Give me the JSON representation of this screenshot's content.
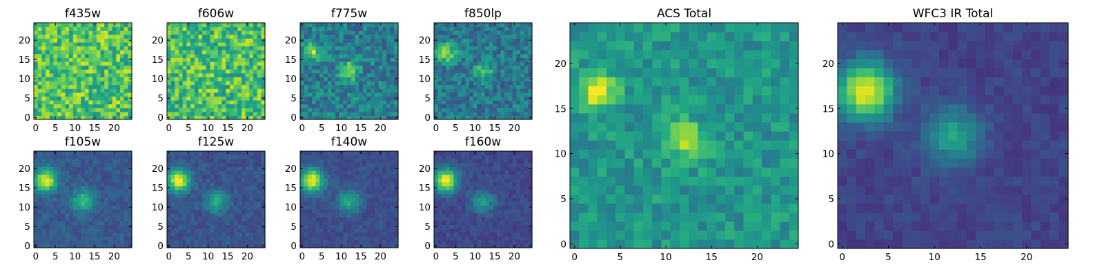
{
  "figure": {
    "description": "Grid of 8 per-filter image cutouts plus ACS and WFC3 IR stacked totals",
    "colormap": "viridis",
    "grid_size": 25
  },
  "chart_data": [
    {
      "type": "heatmap",
      "title": "f435w",
      "xticks": [
        "0",
        "5",
        "10",
        "15",
        "20"
      ],
      "yticks": [
        "0",
        "5",
        "10",
        "15",
        "20"
      ],
      "xlim": [
        0,
        25
      ],
      "ylim": [
        0,
        25
      ],
      "colormap": "viridis",
      "features": {
        "background": 0.72,
        "noise": 0.22,
        "sources": []
      }
    },
    {
      "type": "heatmap",
      "title": "f606w",
      "xticks": [
        "0",
        "5",
        "10",
        "15",
        "20"
      ],
      "yticks": [
        "0",
        "5",
        "10",
        "15",
        "20"
      ],
      "xlim": [
        0,
        25
      ],
      "ylim": [
        0,
        25
      ],
      "colormap": "viridis",
      "features": {
        "background": 0.7,
        "noise": 0.22,
        "sources": []
      }
    },
    {
      "type": "heatmap",
      "title": "f775w",
      "xticks": [
        "0",
        "5",
        "10",
        "15",
        "20"
      ],
      "yticks": [
        "0",
        "5",
        "10",
        "15",
        "20"
      ],
      "xlim": [
        0,
        25
      ],
      "ylim": [
        0,
        25
      ],
      "colormap": "viridis",
      "features": {
        "background": 0.42,
        "noise": 0.16,
        "sources": [
          {
            "x": 2.5,
            "y": 17,
            "amp": 0.45,
            "sigma": 1.6
          },
          {
            "x": 12,
            "y": 12,
            "amp": 0.45,
            "sigma": 1.6
          }
        ]
      }
    },
    {
      "type": "heatmap",
      "title": "f850lp",
      "xticks": [
        "0",
        "5",
        "10",
        "15",
        "20"
      ],
      "yticks": [
        "0",
        "5",
        "10",
        "15",
        "20"
      ],
      "xlim": [
        0,
        25
      ],
      "ylim": [
        0,
        25
      ],
      "colormap": "viridis",
      "features": {
        "background": 0.4,
        "noise": 0.16,
        "sources": [
          {
            "x": 2.5,
            "y": 17,
            "amp": 0.5,
            "sigma": 1.6
          },
          {
            "x": 12,
            "y": 12,
            "amp": 0.35,
            "sigma": 1.6
          }
        ]
      }
    },
    {
      "type": "heatmap",
      "title": "f105w",
      "xticks": [
        "0",
        "5",
        "10",
        "15",
        "20"
      ],
      "yticks": [
        "0",
        "5",
        "10",
        "15",
        "20"
      ],
      "xlim": [
        0,
        25
      ],
      "ylim": [
        0,
        25
      ],
      "colormap": "viridis",
      "features": {
        "background": 0.28,
        "noise": 0.07,
        "sources": [
          {
            "x": 2.5,
            "y": 17,
            "amp": 0.72,
            "sigma": 2.0
          },
          {
            "x": 12,
            "y": 11.5,
            "amp": 0.42,
            "sigma": 2.0
          }
        ]
      }
    },
    {
      "type": "heatmap",
      "title": "f125w",
      "xticks": [
        "0",
        "5",
        "10",
        "15",
        "20"
      ],
      "yticks": [
        "0",
        "5",
        "10",
        "15",
        "20"
      ],
      "xlim": [
        0,
        25
      ],
      "ylim": [
        0,
        25
      ],
      "colormap": "viridis",
      "features": {
        "background": 0.26,
        "noise": 0.07,
        "sources": [
          {
            "x": 2.5,
            "y": 17,
            "amp": 0.74,
            "sigma": 2.0
          },
          {
            "x": 12,
            "y": 11.5,
            "amp": 0.34,
            "sigma": 2.0
          }
        ]
      }
    },
    {
      "type": "heatmap",
      "title": "f140w",
      "xticks": [
        "0",
        "5",
        "10",
        "15",
        "20"
      ],
      "yticks": [
        "0",
        "5",
        "10",
        "15",
        "20"
      ],
      "xlim": [
        0,
        25
      ],
      "ylim": [
        0,
        25
      ],
      "colormap": "viridis",
      "features": {
        "background": 0.24,
        "noise": 0.06,
        "sources": [
          {
            "x": 2.5,
            "y": 17,
            "amp": 0.76,
            "sigma": 2.1
          },
          {
            "x": 12,
            "y": 11.5,
            "amp": 0.36,
            "sigma": 2.1
          }
        ]
      }
    },
    {
      "type": "heatmap",
      "title": "f160w",
      "xticks": [
        "0",
        "5",
        "10",
        "15",
        "20"
      ],
      "yticks": [
        "0",
        "5",
        "10",
        "15",
        "20"
      ],
      "xlim": [
        0,
        25
      ],
      "ylim": [
        0,
        25
      ],
      "colormap": "viridis",
      "features": {
        "background": 0.22,
        "noise": 0.06,
        "sources": [
          {
            "x": 2.5,
            "y": 17,
            "amp": 0.78,
            "sigma": 2.1
          },
          {
            "x": 12,
            "y": 11.5,
            "amp": 0.32,
            "sigma": 2.1
          }
        ]
      }
    },
    {
      "type": "heatmap",
      "title": "ACS Total",
      "xticks": [
        "0",
        "5",
        "10",
        "15",
        "20"
      ],
      "yticks": [
        "0",
        "5",
        "10",
        "15",
        "20"
      ],
      "xlim": [
        0,
        25
      ],
      "ylim": [
        0,
        25
      ],
      "colormap": "viridis",
      "features": {
        "background": 0.52,
        "noise": 0.12,
        "sources": [
          {
            "x": 2.5,
            "y": 17,
            "amp": 0.45,
            "sigma": 1.5
          },
          {
            "x": 12,
            "y": 11.5,
            "amp": 0.42,
            "sigma": 1.4
          }
        ]
      }
    },
    {
      "type": "heatmap",
      "title": "WFC3 IR Total",
      "xticks": [
        "0",
        "5",
        "10",
        "15",
        "20"
      ],
      "yticks": [
        "0",
        "5",
        "10",
        "15",
        "20"
      ],
      "xlim": [
        0,
        25
      ],
      "ylim": [
        0,
        25
      ],
      "colormap": "viridis",
      "features": {
        "background": 0.2,
        "noise": 0.05,
        "sources": [
          {
            "x": 2.5,
            "y": 17,
            "amp": 0.8,
            "sigma": 2.2
          },
          {
            "x": 12,
            "y": 12,
            "amp": 0.38,
            "sigma": 2.2
          }
        ]
      }
    }
  ]
}
